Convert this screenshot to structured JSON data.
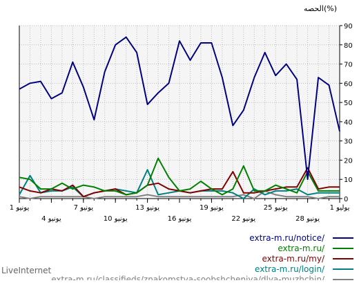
{
  "chart_data": {
    "type": "line",
    "ylabel": "الحصه(%)",
    "ylim": [
      0,
      90
    ],
    "yticks": [
      0,
      10,
      20,
      30,
      40,
      50,
      60,
      70,
      80,
      90
    ],
    "grid": true,
    "x_tick_labels": [
      {
        "label": "1 يوليو",
        "index": 0
      },
      {
        "label": "28 يونيو",
        "index": 3
      },
      {
        "label": "25 يونيو",
        "index": 6
      },
      {
        "label": "22 يونيو",
        "index": 9
      },
      {
        "label": "19 يونيو",
        "index": 12
      },
      {
        "label": "16 يونيو",
        "index": 15
      },
      {
        "label": "13 يونيو",
        "index": 18
      },
      {
        "label": "10 يونيو",
        "index": 21
      },
      {
        "label": "7 يونيو",
        "index": 24
      },
      {
        "label": "4 يونيو",
        "index": 27
      },
      {
        "label": "1 يونيو",
        "index": 30
      }
    ],
    "series": [
      {
        "name": "extra-m.ru/notice/",
        "color": "#000080",
        "values": [
          35,
          59,
          63,
          10,
          62,
          70,
          64,
          76,
          63,
          46,
          38,
          63,
          81,
          81,
          72,
          82,
          60,
          55,
          49,
          76,
          84,
          80,
          66,
          41,
          58,
          71,
          55,
          52,
          61,
          60,
          57
        ]
      },
      {
        "name": "extra-m.ru/",
        "color": "#008000",
        "values": [
          4,
          4,
          4,
          14,
          3,
          5,
          7,
          4,
          4,
          17,
          5,
          2,
          5,
          9,
          5,
          4,
          11,
          21,
          7,
          3,
          2,
          4,
          4,
          6,
          7,
          5,
          8,
          5,
          5,
          10,
          11
        ]
      },
      {
        "name": "extra-m.ru/my/",
        "color": "#800000",
        "values": [
          6,
          6,
          5,
          16,
          6,
          6,
          5,
          4,
          3,
          3,
          14,
          5,
          5,
          4,
          3,
          4,
          5,
          8,
          7,
          3,
          2,
          5,
          4,
          3,
          1,
          7,
          4,
          5,
          3,
          4,
          6
        ]
      },
      {
        "name": "extra-m.ru/login/",
        "color": "#008080",
        "values": [
          3,
          3,
          3,
          2,
          5,
          4,
          4,
          2,
          5,
          0,
          3,
          4,
          4,
          4,
          3,
          4,
          3,
          2,
          15,
          3,
          4,
          5,
          4,
          3,
          1,
          6,
          4,
          4,
          3,
          12,
          2
        ]
      },
      {
        "name": "extra-m.ru/classifieds/znakomstva-soobshcheniya/dlya-muzhchin/",
        "color": "#808080",
        "values": [
          1,
          1,
          0,
          1,
          1,
          1,
          2,
          4,
          0,
          2,
          1,
          1,
          1,
          1,
          1,
          1,
          1,
          1,
          2,
          1,
          1,
          1,
          1,
          0,
          1,
          1,
          1,
          1,
          1,
          0,
          1
        ]
      }
    ]
  },
  "credit": "LiveInternet"
}
